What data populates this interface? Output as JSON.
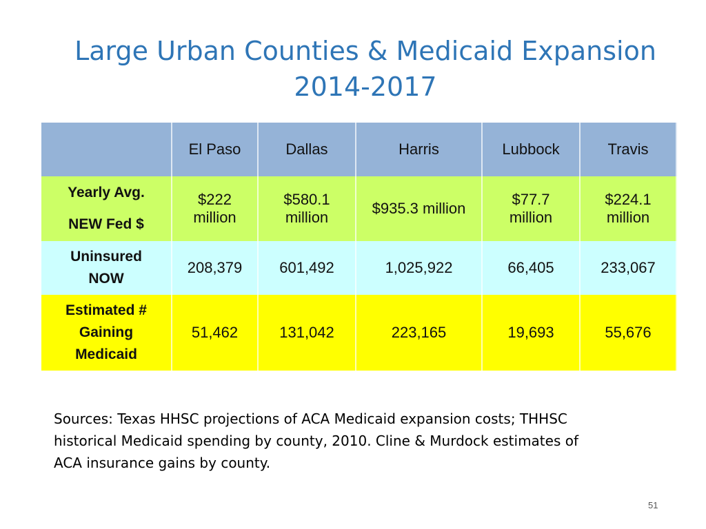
{
  "title": {
    "lines": [
      "Large Urban Counties & Medicaid Expansion",
      "2014-2017"
    ]
  },
  "table": {
    "header": [
      "El Paso",
      "Dallas",
      "Harris",
      "Lubbock",
      "Travis"
    ],
    "rows": [
      {
        "label": [
          "Yearly Avg.",
          "NEW Fed $"
        ],
        "cells": [
          "$222 million",
          "$580.1 million",
          "$935.3 million",
          "$77.7 million",
          "$224.1 million"
        ]
      },
      {
        "label": [
          "Uninsured",
          "NOW"
        ],
        "cells": [
          "208,379",
          "601,492",
          "1,025,922",
          "66,405",
          "233,067"
        ]
      },
      {
        "label": [
          "Estimated #",
          "Gaining",
          "Medicaid"
        ],
        "cells": [
          "51,462",
          "131,042",
          "223,165",
          "19,693",
          "55,676"
        ]
      }
    ]
  },
  "sources": {
    "lines": [
      "Sources:  Texas HHSC projections of ACA Medicaid expansion costs; THHSC",
      "historical Medicaid spending by county, 2010.  Cline & Murdock estimates of",
      "ACA insurance gains by county."
    ]
  },
  "page_number": "51"
}
